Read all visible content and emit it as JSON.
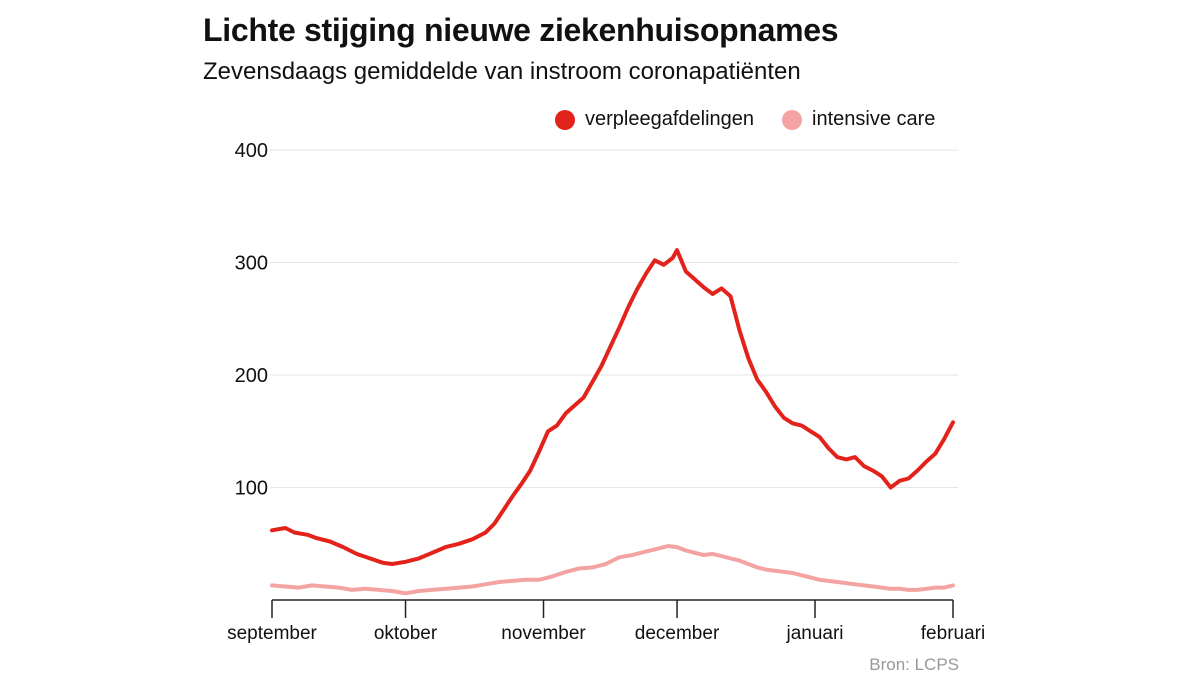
{
  "chart_data": {
    "type": "line",
    "title": "Lichte stijging nieuwe ziekenhuisopnames",
    "subtitle": "Zevensdaags gemiddelde van instroom coronapatiënten",
    "source": "Bron: LCPS",
    "xlabel": "",
    "ylabel": "",
    "ylim": [
      0,
      400
    ],
    "yticks": [
      100,
      200,
      300,
      400
    ],
    "x_domain_days": [
      0,
      153
    ],
    "x_ticks": [
      {
        "label": "september",
        "day": 0
      },
      {
        "label": "oktober",
        "day": 30
      },
      {
        "label": "november",
        "day": 61
      },
      {
        "label": "december",
        "day": 91
      },
      {
        "label": "januari",
        "day": 122
      },
      {
        "label": "februari",
        "day": 153
      }
    ],
    "legend_position": "top-right",
    "grid": true,
    "series": [
      {
        "name": "verpleegafdelingen",
        "color": "#e3231b",
        "points": [
          [
            0,
            62
          ],
          [
            3,
            64
          ],
          [
            5,
            60
          ],
          [
            8,
            58
          ],
          [
            10,
            55
          ],
          [
            13,
            52
          ],
          [
            16,
            47
          ],
          [
            19,
            41
          ],
          [
            22,
            37
          ],
          [
            25,
            33
          ],
          [
            27,
            32
          ],
          [
            30,
            34
          ],
          [
            33,
            37
          ],
          [
            36,
            42
          ],
          [
            39,
            47
          ],
          [
            42,
            50
          ],
          [
            45,
            54
          ],
          [
            48,
            60
          ],
          [
            50,
            68
          ],
          [
            52,
            80
          ],
          [
            54,
            92
          ],
          [
            56,
            103
          ],
          [
            58,
            115
          ],
          [
            60,
            132
          ],
          [
            62,
            150
          ],
          [
            64,
            155
          ],
          [
            66,
            166
          ],
          [
            68,
            173
          ],
          [
            70,
            180
          ],
          [
            72,
            194
          ],
          [
            74,
            208
          ],
          [
            76,
            225
          ],
          [
            78,
            242
          ],
          [
            80,
            260
          ],
          [
            82,
            276
          ],
          [
            84,
            290
          ],
          [
            86,
            302
          ],
          [
            88,
            298
          ],
          [
            90,
            304
          ],
          [
            91,
            311
          ],
          [
            93,
            292
          ],
          [
            95,
            285
          ],
          [
            97,
            278
          ],
          [
            99,
            272
          ],
          [
            101,
            277
          ],
          [
            103,
            270
          ],
          [
            105,
            240
          ],
          [
            107,
            215
          ],
          [
            109,
            196
          ],
          [
            111,
            185
          ],
          [
            113,
            172
          ],
          [
            115,
            162
          ],
          [
            117,
            157
          ],
          [
            119,
            155
          ],
          [
            121,
            150
          ],
          [
            123,
            145
          ],
          [
            125,
            135
          ],
          [
            127,
            127
          ],
          [
            129,
            125
          ],
          [
            131,
            127
          ],
          [
            133,
            119
          ],
          [
            135,
            115
          ],
          [
            137,
            110
          ],
          [
            139,
            100
          ],
          [
            141,
            106
          ],
          [
            143,
            108
          ],
          [
            145,
            115
          ],
          [
            147,
            123
          ],
          [
            149,
            130
          ],
          [
            151,
            143
          ],
          [
            153,
            158
          ]
        ]
      },
      {
        "name": "intensive care",
        "color": "#f4a3a3",
        "points": [
          [
            0,
            13
          ],
          [
            3,
            12
          ],
          [
            6,
            11
          ],
          [
            9,
            13
          ],
          [
            12,
            12
          ],
          [
            15,
            11
          ],
          [
            18,
            9
          ],
          [
            21,
            10
          ],
          [
            24,
            9
          ],
          [
            27,
            8
          ],
          [
            30,
            6
          ],
          [
            33,
            8
          ],
          [
            36,
            9
          ],
          [
            39,
            10
          ],
          [
            42,
            11
          ],
          [
            45,
            12
          ],
          [
            48,
            14
          ],
          [
            51,
            16
          ],
          [
            54,
            17
          ],
          [
            57,
            18
          ],
          [
            60,
            18
          ],
          [
            63,
            21
          ],
          [
            66,
            25
          ],
          [
            69,
            28
          ],
          [
            72,
            29
          ],
          [
            75,
            32
          ],
          [
            78,
            38
          ],
          [
            81,
            40
          ],
          [
            84,
            43
          ],
          [
            87,
            46
          ],
          [
            89,
            48
          ],
          [
            91,
            47
          ],
          [
            93,
            44
          ],
          [
            95,
            42
          ],
          [
            97,
            40
          ],
          [
            99,
            41
          ],
          [
            101,
            39
          ],
          [
            103,
            37
          ],
          [
            105,
            35
          ],
          [
            107,
            32
          ],
          [
            109,
            29
          ],
          [
            111,
            27
          ],
          [
            113,
            26
          ],
          [
            115,
            25
          ],
          [
            117,
            24
          ],
          [
            119,
            22
          ],
          [
            121,
            20
          ],
          [
            123,
            18
          ],
          [
            125,
            17
          ],
          [
            127,
            16
          ],
          [
            129,
            15
          ],
          [
            131,
            14
          ],
          [
            133,
            13
          ],
          [
            135,
            12
          ],
          [
            137,
            11
          ],
          [
            139,
            10
          ],
          [
            141,
            10
          ],
          [
            143,
            9
          ],
          [
            145,
            9
          ],
          [
            147,
            10
          ],
          [
            149,
            11
          ],
          [
            151,
            11
          ],
          [
            153,
            13
          ]
        ]
      }
    ]
  }
}
